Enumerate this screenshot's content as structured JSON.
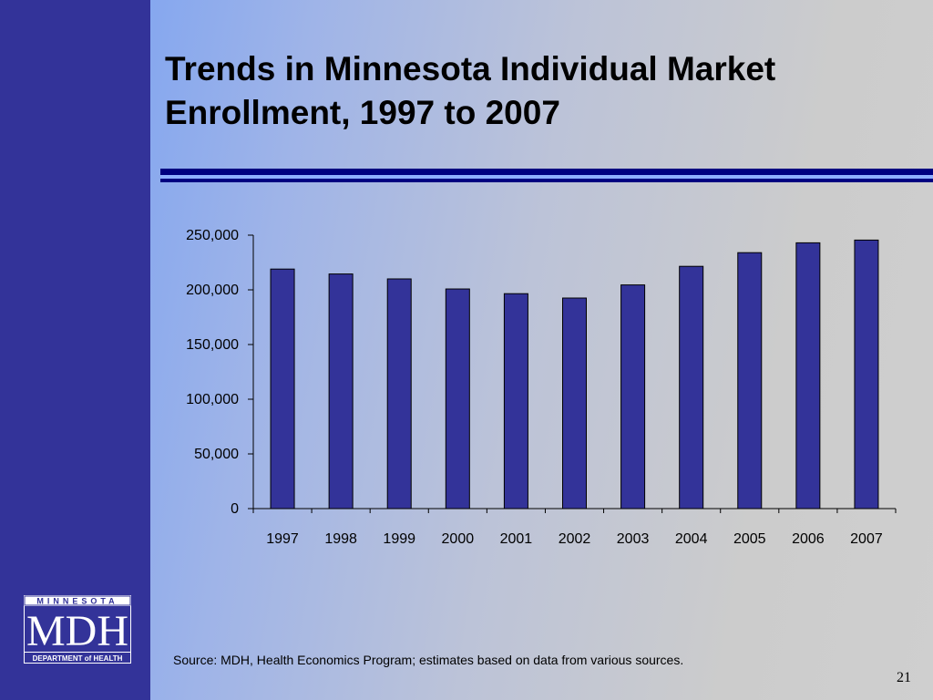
{
  "slide": {
    "title_line1": "Trends in Minnesota Individual Market",
    "title_line2": "Enrollment, 1997 to 2007",
    "source": "Source:  MDH, Health Economics Program; estimates based on data from various sources.",
    "page_number": "21"
  },
  "logo": {
    "top_text": "MINNESOTA",
    "main_text": "MDH",
    "bottom_text": "DEPARTMENT of HEALTH"
  },
  "colors": {
    "left_bar": "#333399",
    "bar_fill": "#333399",
    "rule": "#000080"
  },
  "chart_data": {
    "type": "bar",
    "categories": [
      "1997",
      "1998",
      "1999",
      "2000",
      "2001",
      "2002",
      "2003",
      "2004",
      "2005",
      "2006",
      "2007"
    ],
    "values": [
      219000,
      214500,
      210000,
      200800,
      196500,
      192500,
      204500,
      221500,
      234000,
      243000,
      245500
    ],
    "ylim": [
      0,
      250000
    ],
    "yticks": [
      0,
      50000,
      100000,
      150000,
      200000,
      250000
    ],
    "ytick_labels": [
      "0",
      "50,000",
      "100,000",
      "150,000",
      "200,000",
      "250,000"
    ],
    "grid": false,
    "legend": "none"
  }
}
